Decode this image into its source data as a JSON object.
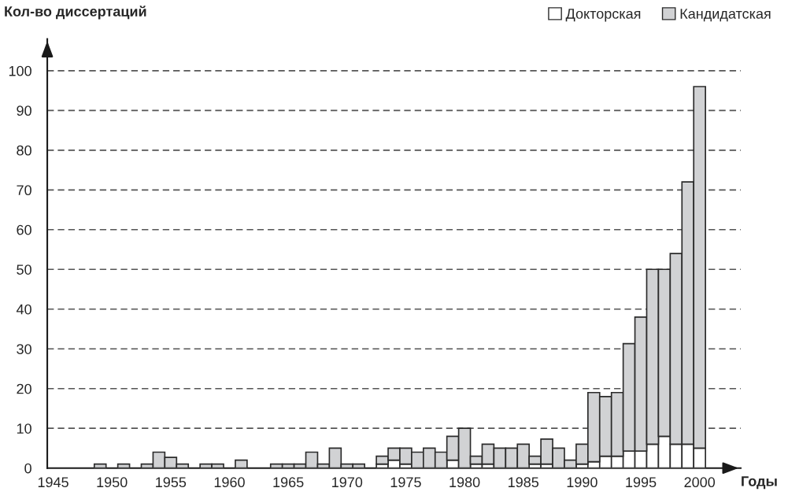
{
  "chart_data": {
    "type": "bar",
    "stacked": true,
    "ylabel": "Кол-во диссертаций",
    "xlabel": "Годы",
    "x": [
      1945,
      1946,
      1947,
      1948,
      1949,
      1950,
      1951,
      1952,
      1953,
      1954,
      1955,
      1956,
      1957,
      1958,
      1959,
      1960,
      1961,
      1962,
      1963,
      1964,
      1965,
      1966,
      1967,
      1968,
      1969,
      1970,
      1971,
      1972,
      1973,
      1974,
      1975,
      1976,
      1977,
      1978,
      1979,
      1980,
      1981,
      1982,
      1983,
      1984,
      1985,
      1986,
      1987,
      1988,
      1989,
      1990,
      1991,
      1992,
      1993,
      1994,
      1995,
      1996,
      1997,
      1998,
      1999,
      2000
    ],
    "series": [
      {
        "name": "Докторская",
        "color": "#ffffff",
        "values": [
          0,
          0,
          0,
          0,
          0,
          0,
          0,
          0,
          0,
          0,
          0,
          0,
          0,
          0,
          0,
          0,
          0,
          0,
          0,
          0,
          0,
          0,
          0,
          0,
          0,
          0,
          0,
          0,
          1,
          2,
          1,
          0,
          0,
          0,
          2,
          0,
          1,
          1,
          0,
          0,
          0,
          1,
          1,
          0,
          0,
          1,
          1.6,
          3,
          3,
          4.3,
          4.3,
          6,
          8,
          6,
          6,
          5
        ]
      },
      {
        "name": "Кандидатская",
        "color": "#d1d2d4",
        "values": [
          0,
          0,
          0,
          0,
          1,
          0,
          1,
          0,
          1,
          4,
          2.7,
          1,
          0,
          1,
          1,
          0,
          2,
          0,
          0,
          1,
          1,
          1,
          4,
          1,
          5,
          1,
          1,
          0,
          2,
          3,
          4,
          4,
          5,
          4,
          6,
          10,
          2,
          5,
          5,
          5,
          6,
          2,
          6.3,
          5,
          2,
          5,
          17.4,
          15,
          16,
          27,
          33.7,
          44,
          42,
          48,
          66,
          91
        ]
      }
    ],
    "xlim": [
      1944.5,
      2003.5
    ],
    "ylim": [
      0,
      108
    ],
    "xticks": [
      1945,
      1950,
      1955,
      1960,
      1965,
      1970,
      1975,
      1980,
      1985,
      1990,
      1995,
      2000
    ],
    "yticks": [
      0,
      10,
      20,
      30,
      40,
      50,
      60,
      70,
      80,
      90,
      100
    ],
    "grid": "y",
    "legend": "top right"
  }
}
